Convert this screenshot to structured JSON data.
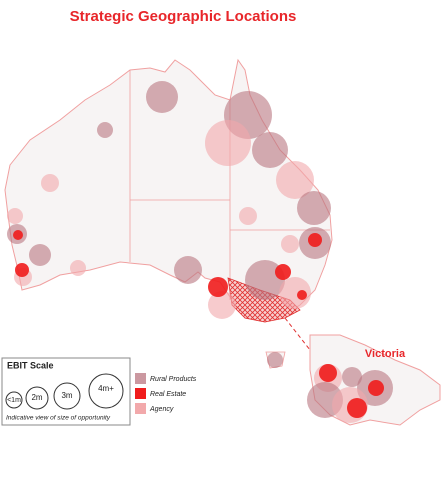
{
  "title": "Strategic Geographic Locations",
  "inset_label": "Victoria",
  "ebit_scale": {
    "title": "EBIT Scale",
    "sizes": [
      "<1m",
      "2m",
      "3m",
      "4m+"
    ],
    "note": "Indicative view of size of opportunity"
  },
  "legend": [
    "Rural Products",
    "Real Estate",
    "Agency"
  ]
}
